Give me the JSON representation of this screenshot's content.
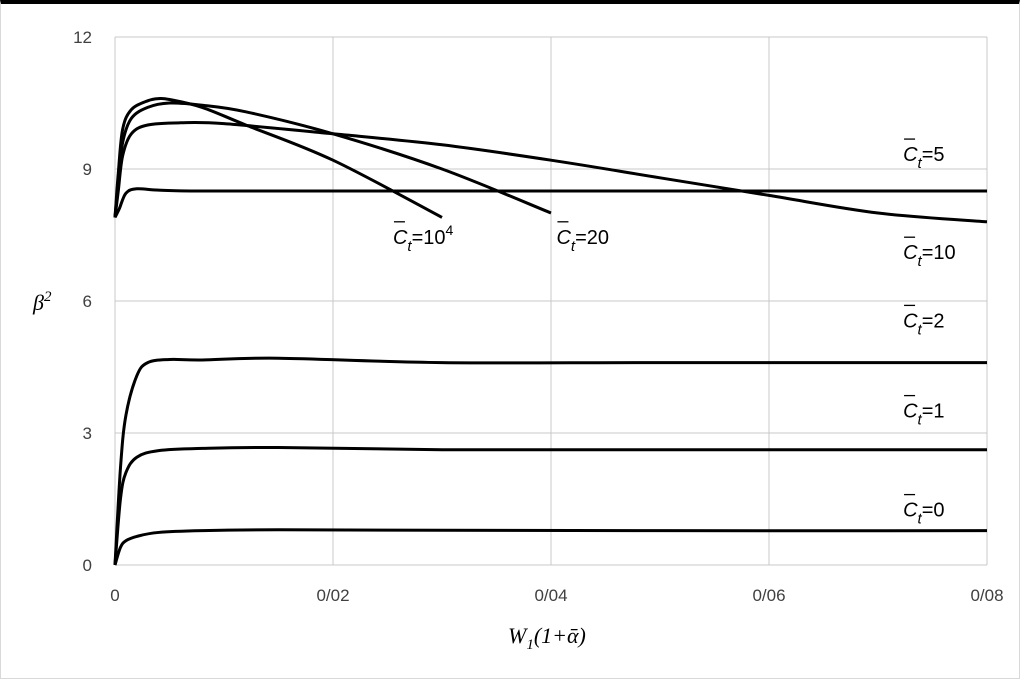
{
  "chart_data": {
    "type": "line",
    "xlabel": "W",
    "xlabel_sub": "1",
    "xlabel_rest": "(1+ᾱ)",
    "ylabel": "β",
    "ylabel_sup": "2",
    "xlim": [
      0,
      0.08
    ],
    "ylim": [
      0,
      12
    ],
    "x_ticks": [
      {
        "value": 0,
        "label": "0"
      },
      {
        "value": 0.02,
        "label": "0/02"
      },
      {
        "value": 0.04,
        "label": "0/04"
      },
      {
        "value": 0.06,
        "label": "0/06"
      },
      {
        "value": 0.08,
        "label": "0/08"
      }
    ],
    "y_ticks": [
      {
        "value": 0,
        "label": "0"
      },
      {
        "value": 3,
        "label": "3"
      },
      {
        "value": 6,
        "label": "6"
      },
      {
        "value": 9,
        "label": "9"
      },
      {
        "value": 12,
        "label": "12"
      }
    ],
    "grid": true,
    "line_color": "#000000",
    "grid_color": "#c8c8c8",
    "series": [
      {
        "name": "=0",
        "x": [
          0,
          0.0005,
          0.001,
          0.002,
          0.004,
          0.008,
          0.015,
          0.03,
          0.05,
          0.08
        ],
        "y": [
          0,
          0.4,
          0.55,
          0.65,
          0.74,
          0.78,
          0.8,
          0.79,
          0.78,
          0.78
        ],
        "label": {
          "base": "C",
          "sub": "t",
          "text": "=0",
          "sup": "",
          "x": 0.0723,
          "y": 1.1
        }
      },
      {
        "name": "=1",
        "x": [
          0,
          0.0005,
          0.001,
          0.002,
          0.004,
          0.008,
          0.015,
          0.03,
          0.05,
          0.08
        ],
        "y": [
          0,
          1.5,
          2.1,
          2.45,
          2.6,
          2.65,
          2.67,
          2.62,
          2.62,
          2.62
        ],
        "label": {
          "base": "C",
          "sub": "t",
          "text": "=1",
          "sup": "",
          "x": 0.0723,
          "y": 3.35
        }
      },
      {
        "name": "=2",
        "x": [
          0,
          0.0005,
          0.001,
          0.002,
          0.003,
          0.005,
          0.008,
          0.015,
          0.03,
          0.05,
          0.08
        ],
        "y": [
          0,
          2.2,
          3.4,
          4.3,
          4.6,
          4.67,
          4.66,
          4.7,
          4.6,
          4.6,
          4.6
        ],
        "label": {
          "base": "C",
          "sub": "t",
          "text": "=2",
          "sup": "",
          "x": 0.0723,
          "y": 5.4
        }
      },
      {
        "name": "=5",
        "x": [
          0,
          0.0004,
          0.001,
          0.002,
          0.004,
          0.008,
          0.02,
          0.04,
          0.06,
          0.08
        ],
        "y": [
          7.9,
          8.1,
          8.45,
          8.55,
          8.52,
          8.5,
          8.5,
          8.5,
          8.5,
          8.5
        ],
        "label": {
          "base": "C",
          "sub": "t",
          "text": "=5",
          "sup": "",
          "x": 0.0723,
          "y": 9.18
        }
      },
      {
        "name": "=10",
        "x": [
          0,
          0.0003,
          0.0007,
          0.0015,
          0.003,
          0.006,
          0.01,
          0.02,
          0.03,
          0.04,
          0.05,
          0.06,
          0.07,
          0.08
        ],
        "y": [
          7.9,
          8.5,
          9.3,
          9.8,
          10.0,
          10.05,
          10.03,
          9.8,
          9.55,
          9.2,
          8.8,
          8.4,
          8.0,
          7.8
        ],
        "label": {
          "base": "C",
          "sub": "t",
          "text": "=10",
          "sup": "",
          "x": 0.0723,
          "y": 6.95
        }
      },
      {
        "name": "=20",
        "x": [
          0,
          0.0003,
          0.0007,
          0.0015,
          0.003,
          0.005,
          0.008,
          0.012,
          0.02,
          0.03,
          0.04
        ],
        "y": [
          7.9,
          8.7,
          9.6,
          10.15,
          10.4,
          10.5,
          10.45,
          10.3,
          9.8,
          9.0,
          8.0
        ],
        "label": {
          "base": "C",
          "sub": "t",
          "text": "=20",
          "sup": "",
          "x": 0.0405,
          "y": 7.3
        }
      },
      {
        "name": "=10^4",
        "x": [
          0,
          0.0003,
          0.0007,
          0.0015,
          0.003,
          0.004,
          0.005,
          0.008,
          0.012,
          0.02,
          0.03
        ],
        "y": [
          7.9,
          8.9,
          9.9,
          10.35,
          10.55,
          10.6,
          10.58,
          10.4,
          10.0,
          9.2,
          7.9
        ],
        "label": {
          "base": "C",
          "sub": "t",
          "text": "=10",
          "sup": "4",
          "x": 0.0255,
          "y": 7.3
        }
      }
    ]
  }
}
